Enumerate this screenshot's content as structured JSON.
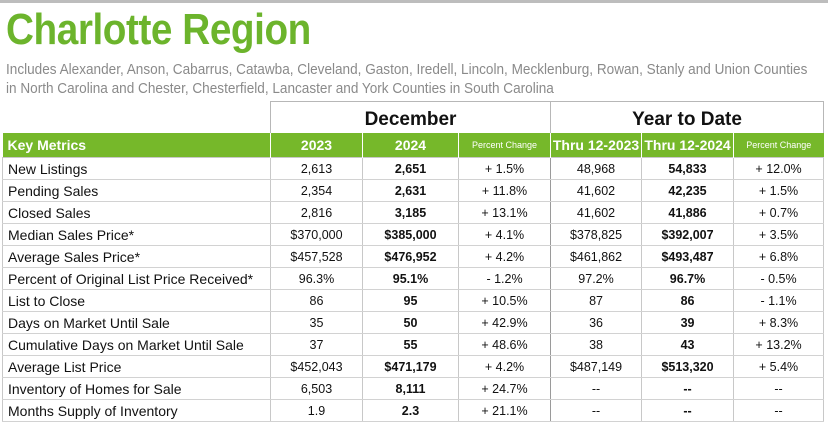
{
  "title": "Charlotte Region",
  "subtitle": "Includes Alexander, Anson, Cabarrus, Catawba, Cleveland, Gaston, Iredell, Lincoln, Mecklenburg, Rowan, Stanly and Union Counties in North Carolina and Chester, Chesterfield, Lancaster and York Counties in South Carolina",
  "groups": {
    "december": "December",
    "ytd": "Year to Date"
  },
  "headers": {
    "metric": "Key Metrics",
    "y2023": "2023",
    "y2024": "2024",
    "pct1": "Percent Change",
    "ytd1": "Thru 12-2023",
    "ytd2": "Thru 12-2024",
    "pct2": "Percent Change"
  },
  "rows": [
    {
      "metric": "New Listings",
      "y2023": "2,613",
      "y2024": "2,651",
      "pct1": "+ 1.5%",
      "ytd1": "48,968",
      "ytd2": "54,833",
      "pct2": "+ 12.0%"
    },
    {
      "metric": "Pending Sales",
      "y2023": "2,354",
      "y2024": "2,631",
      "pct1": "+ 11.8%",
      "ytd1": "41,602",
      "ytd2": "42,235",
      "pct2": "+ 1.5%"
    },
    {
      "metric": "Closed Sales",
      "y2023": "2,816",
      "y2024": "3,185",
      "pct1": "+ 13.1%",
      "ytd1": "41,602",
      "ytd2": "41,886",
      "pct2": "+ 0.7%"
    },
    {
      "metric": "Median Sales Price*",
      "y2023": "$370,000",
      "y2024": "$385,000",
      "pct1": "+ 4.1%",
      "ytd1": "$378,825",
      "ytd2": "$392,007",
      "pct2": "+ 3.5%"
    },
    {
      "metric": "Average Sales Price*",
      "y2023": "$457,528",
      "y2024": "$476,952",
      "pct1": "+ 4.2%",
      "ytd1": "$461,862",
      "ytd2": "$493,487",
      "pct2": "+ 6.8%"
    },
    {
      "metric": "Percent of Original List Price Received*",
      "y2023": "96.3%",
      "y2024": "95.1%",
      "pct1": "- 1.2%",
      "ytd1": "97.2%",
      "ytd2": "96.7%",
      "pct2": "- 0.5%"
    },
    {
      "metric": "List to Close",
      "y2023": "86",
      "y2024": "95",
      "pct1": "+ 10.5%",
      "ytd1": "87",
      "ytd2": "86",
      "pct2": "- 1.1%"
    },
    {
      "metric": "Days on Market Until Sale",
      "y2023": "35",
      "y2024": "50",
      "pct1": "+ 42.9%",
      "ytd1": "36",
      "ytd2": "39",
      "pct2": "+ 8.3%"
    },
    {
      "metric": "Cumulative Days on Market Until Sale",
      "y2023": "37",
      "y2024": "55",
      "pct1": "+ 48.6%",
      "ytd1": "38",
      "ytd2": "43",
      "pct2": "+ 13.2%"
    },
    {
      "metric": "Average List Price",
      "y2023": "$452,043",
      "y2024": "$471,179",
      "pct1": "+ 4.2%",
      "ytd1": "$487,149",
      "ytd2": "$513,320",
      "pct2": "+ 5.4%"
    },
    {
      "metric": "Inventory of Homes for Sale",
      "y2023": "6,503",
      "y2024": "8,111",
      "pct1": "+ 24.7%",
      "ytd1": "--",
      "ytd2": "--",
      "pct2": "--"
    },
    {
      "metric": "Months Supply of Inventory",
      "y2023": "1.9",
      "y2024": "2.3",
      "pct1": "+ 21.1%",
      "ytd1": "--",
      "ytd2": "--",
      "pct2": "--"
    }
  ],
  "colors": {
    "title_green": "#6cb42c",
    "header_green": "#76b82a"
  }
}
